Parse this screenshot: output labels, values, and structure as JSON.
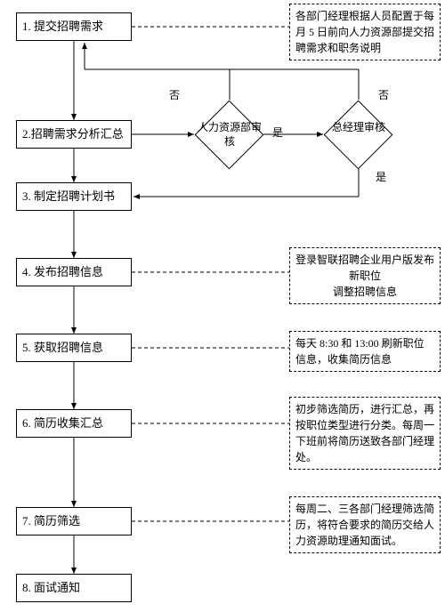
{
  "flowchart": {
    "type": "flowchart",
    "background_color": "#ffffff",
    "stroke_color": "#000000",
    "font_family": "SimSun",
    "nodes": {
      "step1": "1. 提交招聘需求",
      "step2": "2.招聘需求分析汇总",
      "step3": "3. 制定招聘计划书",
      "step4": "4. 发布招聘信息",
      "step5": "5. 获取招聘信息",
      "step6": "6. 简历收集汇总",
      "step7": "7. 简历筛选",
      "step8": "8. 面试通知",
      "decision1": "人力资源部审核",
      "decision2": "总经理审核"
    },
    "notes": {
      "note1": "各部门经理根据人员配置于每月 5 日前向人力资源部提交招聘需求和职务说明",
      "note4": "登录智联招聘企业用户版发布新职位\n调整招聘信息",
      "note5": "每天 8:30 和 13:00 刷新职位信息，收集简历信息",
      "note6": "初步筛选简历，进行汇总，再按职位类型进行分类。每周一下班前将简历送致各部门经理处。",
      "note7": "每周二、三各部门经理筛选简历，将符合要求的简历交给人力资源助理通知面试。"
    },
    "edge_labels": {
      "yes": "是",
      "no": "否"
    }
  }
}
